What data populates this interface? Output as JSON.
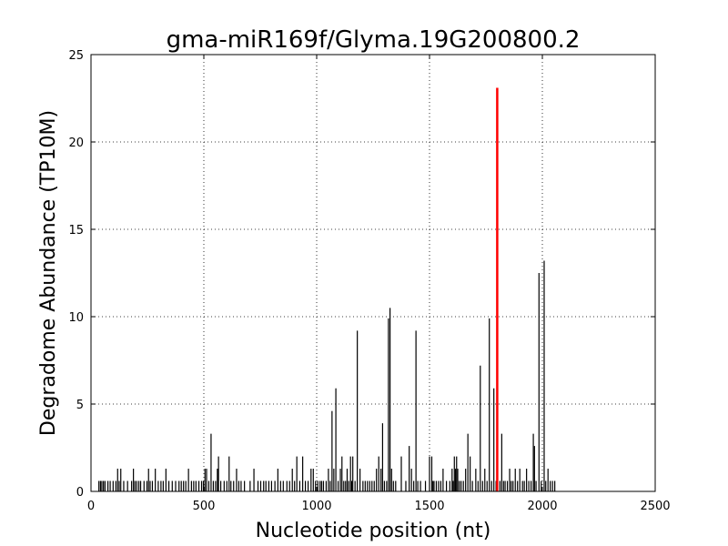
{
  "chart_data": {
    "type": "bar",
    "title": "gma-miR169f/Glyma.19G200800.2",
    "xlabel": "Nucleotide position (nt)",
    "ylabel": "Degradome Abundance (TP10M)",
    "xlim": [
      0,
      2500
    ],
    "ylim": [
      0,
      25
    ],
    "xticks": [
      0,
      500,
      1000,
      1500,
      2000,
      2500
    ],
    "yticks": [
      0,
      5,
      10,
      15,
      20,
      25
    ],
    "grid": true,
    "colors": {
      "series": "#000000",
      "highlight": "#ff0000"
    },
    "series": [
      {
        "color": "#000000",
        "x": [
          35,
          42,
          48,
          55,
          62,
          75,
          85,
          98,
          110,
          118,
          125,
          132,
          145,
          162,
          180,
          188,
          195,
          203,
          212,
          220,
          235,
          248,
          255,
          262,
          272,
          285,
          298,
          310,
          320,
          332,
          345,
          360,
          375,
          390,
          400,
          410,
          420,
          432,
          445,
          455,
          465,
          478,
          490,
          498,
          505,
          512,
          522,
          532,
          542,
          552,
          560,
          565,
          575,
          590,
          602,
          612,
          620,
          632,
          645,
          655,
          665,
          680,
          705,
          722,
          740,
          752,
          765,
          775,
          788,
          800,
          815,
          828,
          840,
          852,
          868,
          880,
          892,
          902,
          912,
          925,
          938,
          950,
          962,
          975,
          985,
          995,
          1005,
          1015,
          1022,
          1030,
          1042,
          1052,
          1060,
          1068,
          1076,
          1085,
          1095,
          1105,
          1112,
          1120,
          1128,
          1135,
          1142,
          1150,
          1155,
          1160,
          1170,
          1180,
          1192,
          1205,
          1215,
          1225,
          1235,
          1245,
          1255,
          1265,
          1275,
          1285,
          1292,
          1300,
          1310,
          1318,
          1325,
          1332,
          1340,
          1350,
          1375,
          1395,
          1410,
          1420,
          1430,
          1440,
          1448,
          1460,
          1482,
          1500,
          1510,
          1515,
          1520,
          1530,
          1540,
          1550,
          1560,
          1575,
          1590,
          1600,
          1605,
          1610,
          1615,
          1620,
          1625,
          1632,
          1640,
          1650,
          1660,
          1670,
          1680,
          1690,
          1705,
          1715,
          1725,
          1735,
          1745,
          1755,
          1765,
          1775,
          1785,
          1795,
          1812,
          1820,
          1828,
          1835,
          1845,
          1855,
          1862,
          1870,
          1880,
          1890,
          1900,
          1912,
          1920,
          1930,
          1940,
          1950,
          1960,
          1965,
          1972,
          1985,
          1995,
          2008,
          2015,
          2025,
          2035,
          2045,
          2055
        ],
        "y": [
          0.6,
          0.6,
          0.6,
          0.6,
          0.6,
          0.6,
          0.6,
          0.6,
          0.6,
          1.3,
          0.6,
          1.3,
          0.6,
          0.6,
          0.6,
          1.3,
          0.6,
          0.6,
          0.6,
          0.6,
          0.6,
          0.6,
          1.3,
          0.6,
          0.6,
          1.3,
          0.6,
          0.6,
          0.6,
          1.3,
          0.6,
          0.6,
          0.6,
          0.6,
          0.6,
          0.6,
          0.6,
          1.3,
          0.6,
          0.6,
          0.6,
          0.6,
          0.6,
          0.6,
          1.3,
          1.3,
          0.6,
          3.3,
          0.6,
          0.6,
          1.3,
          2.0,
          0.6,
          0.6,
          0.6,
          2.0,
          0.6,
          0.6,
          1.3,
          0.6,
          0.6,
          0.6,
          0.6,
          1.3,
          0.6,
          0.6,
          0.6,
          0.6,
          0.6,
          0.6,
          0.6,
          1.3,
          0.6,
          0.6,
          0.6,
          0.6,
          1.3,
          0.6,
          2.0,
          0.6,
          2.0,
          0.6,
          0.6,
          1.3,
          1.3,
          0.6,
          0.6,
          0.6,
          0.6,
          0.6,
          0.6,
          1.3,
          0.6,
          4.6,
          1.3,
          5.9,
          0.6,
          1.3,
          2.0,
          0.6,
          0.6,
          1.3,
          0.6,
          2.0,
          0.6,
          2.0,
          0.6,
          9.2,
          1.3,
          0.6,
          0.6,
          0.6,
          0.6,
          0.6,
          0.6,
          1.3,
          2.0,
          1.3,
          3.9,
          0.6,
          0.6,
          9.9,
          10.5,
          1.3,
          0.6,
          0.6,
          2.0,
          0.6,
          2.6,
          1.3,
          0.6,
          9.2,
          0.6,
          0.6,
          0.6,
          2.0,
          2.0,
          0.6,
          0.6,
          0.6,
          0.6,
          0.6,
          1.3,
          0.6,
          0.6,
          1.3,
          0.6,
          2.0,
          1.3,
          2.0,
          1.3,
          0.6,
          0.6,
          0.6,
          1.3,
          3.3,
          2.0,
          0.6,
          1.3,
          0.6,
          7.2,
          0.6,
          1.3,
          0.6,
          9.9,
          0.6,
          5.9,
          0.6,
          0.6,
          3.3,
          0.6,
          0.6,
          0.6,
          1.3,
          0.6,
          0.6,
          1.3,
          0.6,
          1.3,
          0.6,
          0.6,
          1.3,
          0.6,
          0.6,
          3.3,
          2.6,
          0.6,
          12.5,
          0.6,
          13.2,
          0.6,
          1.3,
          0.6,
          0.6,
          0.6
        ]
      },
      {
        "color": "#ff0000",
        "x": [
          1800
        ],
        "y": [
          23.1
        ]
      }
    ]
  }
}
